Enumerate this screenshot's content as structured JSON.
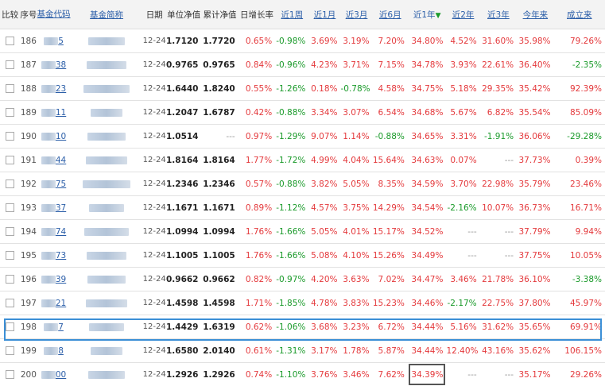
{
  "columns": [
    "比较",
    "序号",
    "基金代码",
    "基金简称",
    "日期",
    "单位净值",
    "累计净值",
    "日增长率",
    "近1周",
    "近1月",
    "近3月",
    "近6月",
    "近1年",
    "近2年",
    "近3年",
    "今年来",
    "成立来"
  ],
  "rows": [
    {
      "idx": "186",
      "code": "5",
      "date": "12-24",
      "nav": "1.7120",
      "acc": "1.7720",
      "day": "0.65%",
      "w1": "-0.98%",
      "m1": "3.69%",
      "m3": "3.19%",
      "m6": "7.20%",
      "y1": "34.80%",
      "y2": "4.52%",
      "y3": "31.60%",
      "ytd": "35.98%",
      "since": "79.26%"
    },
    {
      "idx": "187",
      "code": "38",
      "date": "12-24",
      "nav": "0.9765",
      "acc": "0.9765",
      "day": "0.84%",
      "w1": "-0.96%",
      "m1": "4.23%",
      "m3": "3.71%",
      "m6": "7.15%",
      "y1": "34.78%",
      "y2": "3.93%",
      "y3": "22.61%",
      "ytd": "36.40%",
      "since": "-2.35%"
    },
    {
      "idx": "188",
      "code": "23",
      "date": "12-24",
      "nav": "1.6440",
      "acc": "1.8240",
      "day": "0.55%",
      "w1": "-1.26%",
      "m1": "0.18%",
      "m3": "-0.78%",
      "m6": "4.58%",
      "y1": "34.75%",
      "y2": "5.18%",
      "y3": "29.35%",
      "ytd": "35.42%",
      "since": "92.39%"
    },
    {
      "idx": "189",
      "code": "11",
      "date": "12-24",
      "nav": "1.2047",
      "acc": "1.6787",
      "day": "0.42%",
      "w1": "-0.88%",
      "m1": "3.34%",
      "m3": "3.07%",
      "m6": "6.54%",
      "y1": "34.68%",
      "y2": "5.67%",
      "y3": "6.82%",
      "ytd": "35.54%",
      "since": "85.09%"
    },
    {
      "idx": "190",
      "code": "10",
      "date": "12-24",
      "nav": "1.0514",
      "acc": "---",
      "day": "0.97%",
      "w1": "-1.29%",
      "m1": "9.07%",
      "m3": "1.14%",
      "m6": "-0.88%",
      "y1": "34.65%",
      "y2": "3.31%",
      "y3": "-1.91%",
      "ytd": "36.06%",
      "since": "-29.28%"
    },
    {
      "idx": "191",
      "code": "44",
      "date": "12-24",
      "nav": "1.8164",
      "acc": "1.8164",
      "day": "1.77%",
      "w1": "-1.72%",
      "m1": "4.99%",
      "m3": "4.04%",
      "m6": "15.64%",
      "y1": "34.63%",
      "y2": "0.07%",
      "y3": "---",
      "ytd": "37.73%",
      "since": "0.39%"
    },
    {
      "idx": "192",
      "code": "75",
      "date": "12-24",
      "nav": "1.2346",
      "acc": "1.2346",
      "day": "0.57%",
      "w1": "-0.88%",
      "m1": "3.82%",
      "m3": "5.05%",
      "m6": "8.35%",
      "y1": "34.59%",
      "y2": "3.70%",
      "y3": "22.98%",
      "ytd": "35.79%",
      "since": "23.46%"
    },
    {
      "idx": "193",
      "code": "37",
      "date": "12-24",
      "nav": "1.1671",
      "acc": "1.1671",
      "day": "0.89%",
      "w1": "-1.12%",
      "m1": "4.57%",
      "m3": "3.75%",
      "m6": "14.29%",
      "y1": "34.54%",
      "y2": "-2.16%",
      "y3": "10.07%",
      "ytd": "36.73%",
      "since": "16.71%"
    },
    {
      "idx": "194",
      "code": "74",
      "date": "12-24",
      "nav": "1.0994",
      "acc": "1.0994",
      "day": "1.76%",
      "w1": "-1.66%",
      "m1": "5.05%",
      "m3": "4.01%",
      "m6": "15.17%",
      "y1": "34.52%",
      "y2": "---",
      "y3": "---",
      "ytd": "37.79%",
      "since": "9.94%"
    },
    {
      "idx": "195",
      "code": "73",
      "date": "12-24",
      "nav": "1.1005",
      "acc": "1.1005",
      "day": "1.76%",
      "w1": "-1.66%",
      "m1": "5.08%",
      "m3": "4.10%",
      "m6": "15.26%",
      "y1": "34.49%",
      "y2": "---",
      "y3": "---",
      "ytd": "37.75%",
      "since": "10.05%"
    },
    {
      "idx": "196",
      "code": "39",
      "date": "12-24",
      "nav": "0.9662",
      "acc": "0.9662",
      "day": "0.82%",
      "w1": "-0.97%",
      "m1": "4.20%",
      "m3": "3.63%",
      "m6": "7.02%",
      "y1": "34.47%",
      "y2": "3.46%",
      "y3": "21.78%",
      "ytd": "36.10%",
      "since": "-3.38%"
    },
    {
      "idx": "197",
      "code": "21",
      "date": "12-24",
      "nav": "1.4598",
      "acc": "1.4598",
      "day": "1.71%",
      "w1": "-1.85%",
      "m1": "4.78%",
      "m3": "3.83%",
      "m6": "15.23%",
      "y1": "34.46%",
      "y2": "-2.17%",
      "y3": "22.75%",
      "ytd": "37.80%",
      "since": "45.97%"
    },
    {
      "idx": "198",
      "code": "7",
      "date": "12-24",
      "nav": "1.4429",
      "acc": "1.6319",
      "day": "0.62%",
      "w1": "-1.06%",
      "m1": "3.68%",
      "m3": "3.23%",
      "m6": "6.72%",
      "y1": "34.44%",
      "y2": "5.16%",
      "y3": "31.62%",
      "ytd": "35.65%",
      "since": "69.91%"
    },
    {
      "idx": "199",
      "code": "8",
      "date": "12-24",
      "nav": "1.6580",
      "acc": "2.0140",
      "day": "0.61%",
      "w1": "-1.31%",
      "m1": "3.17%",
      "m3": "1.78%",
      "m6": "5.87%",
      "y1": "34.44%",
      "y2": "12.40%",
      "y3": "43.16%",
      "ytd": "35.62%",
      "since": "106.15%"
    },
    {
      "idx": "200",
      "code": "00",
      "date": "12-24",
      "nav": "1.2926",
      "acc": "1.2926",
      "day": "0.74%",
      "w1": "-1.10%",
      "m1": "3.76%",
      "m3": "3.46%",
      "m6": "7.62%",
      "y1": "34.39%",
      "y2": "---",
      "y3": "---",
      "ytd": "35.17%",
      "since": "29.26%"
    }
  ]
}
